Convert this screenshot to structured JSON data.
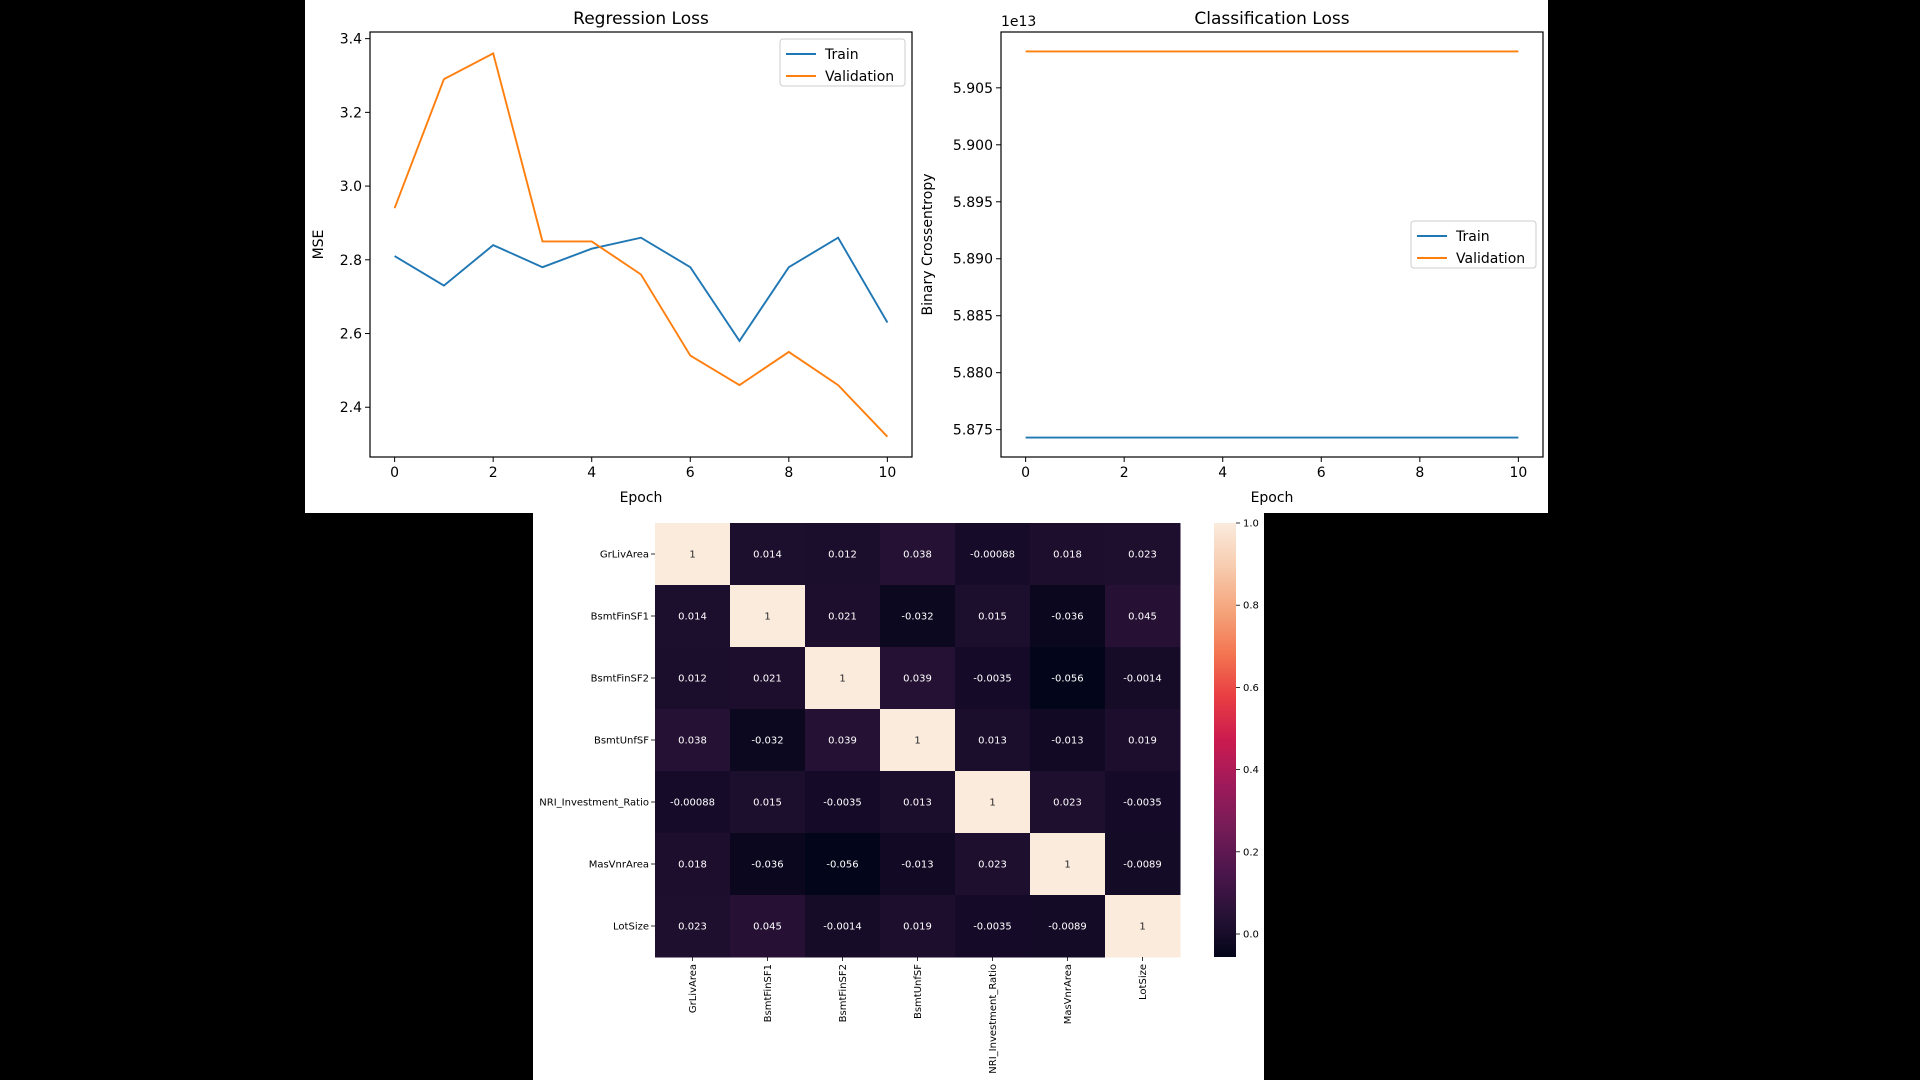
{
  "chart_data": [
    {
      "type": "line",
      "title": "Regression Loss",
      "xlabel": "Epoch",
      "ylabel": "MSE",
      "x": [
        0,
        1,
        2,
        3,
        4,
        5,
        6,
        7,
        8,
        9,
        10
      ],
      "series": [
        {
          "name": "Train",
          "color": "#1f77b4",
          "values": [
            2.81,
            2.73,
            2.84,
            2.78,
            2.83,
            2.86,
            2.78,
            2.58,
            2.78,
            2.86,
            2.63
          ]
        },
        {
          "name": "Validation",
          "color": "#ff7f0e",
          "values": [
            2.94,
            3.29,
            3.36,
            2.85,
            2.85,
            2.76,
            2.54,
            2.46,
            2.55,
            2.46,
            2.32
          ]
        }
      ],
      "xlim": [
        -0.5,
        10.5
      ],
      "ylim": [
        2.265,
        3.418
      ],
      "xticks": [
        0,
        2,
        4,
        6,
        8,
        10
      ],
      "yticks": [
        2.4,
        2.6,
        2.8,
        3.0,
        3.2,
        3.4
      ],
      "ytick_labels": [
        "2.4",
        "2.6",
        "2.8",
        "3.0",
        "3.2",
        "3.4"
      ],
      "legend": "top-right",
      "grid": false
    },
    {
      "type": "line",
      "title": "Classification Loss",
      "xlabel": "Epoch",
      "ylabel": "Binary Crossentropy",
      "offset_label": "1e13",
      "x": [
        0,
        1,
        2,
        3,
        4,
        5,
        6,
        7,
        8,
        9,
        10
      ],
      "series": [
        {
          "name": "Train",
          "color": "#1f77b4",
          "values": [
            5.8743,
            5.8743,
            5.8743,
            5.8743,
            5.8743,
            5.8743,
            5.8743,
            5.8743,
            5.8743,
            5.8743,
            5.8743
          ]
        },
        {
          "name": "Validation",
          "color": "#ff7f0e",
          "values": [
            5.9082,
            5.9082,
            5.9082,
            5.9082,
            5.9082,
            5.9082,
            5.9082,
            5.9082,
            5.9082,
            5.9082,
            5.9082
          ]
        }
      ],
      "xlim": [
        -0.5,
        10.5
      ],
      "ylim": [
        5.8726,
        5.9099
      ],
      "xticks": [
        0,
        2,
        4,
        6,
        8,
        10
      ],
      "yticks": [
        5.875,
        5.88,
        5.885,
        5.89,
        5.895,
        5.9,
        5.905
      ],
      "ytick_labels": [
        "5.875",
        "5.880",
        "5.885",
        "5.890",
        "5.895",
        "5.900",
        "5.905"
      ],
      "legend": "center-right",
      "grid": false
    },
    {
      "type": "heatmap",
      "rows": [
        "GrLivArea",
        "BsmtFinSF1",
        "BsmtFinSF2",
        "BsmtUnfSF",
        "NRI_Investment_Ratio",
        "MasVnrArea",
        "LotSize"
      ],
      "columns": [
        "GrLivArea",
        "BsmtFinSF1",
        "BsmtFinSF2",
        "BsmtUnfSF",
        "NRI_Investment_Ratio",
        "MasVnrArea",
        "LotSize"
      ],
      "values": [
        [
          1,
          0.014,
          0.012,
          0.038,
          -0.00088,
          0.018,
          0.023
        ],
        [
          0.014,
          1,
          0.021,
          -0.032,
          0.015,
          -0.036,
          0.045
        ],
        [
          0.012,
          0.021,
          1,
          0.039,
          -0.0035,
          -0.056,
          -0.0014
        ],
        [
          0.038,
          -0.032,
          0.039,
          1,
          0.013,
          -0.013,
          0.019
        ],
        [
          -0.00088,
          0.015,
          -0.0035,
          0.013,
          1,
          0.023,
          -0.0035
        ],
        [
          0.018,
          -0.036,
          -0.056,
          -0.013,
          0.023,
          1,
          -0.0089
        ],
        [
          0.023,
          0.045,
          -0.0014,
          0.019,
          -0.0035,
          -0.0089,
          1
        ]
      ],
      "labels": [
        [
          "1",
          "0.014",
          "0.012",
          "0.038",
          "-0.00088",
          "0.018",
          "0.023"
        ],
        [
          "0.014",
          "1",
          "0.021",
          "-0.032",
          "0.015",
          "-0.036",
          "0.045"
        ],
        [
          "0.012",
          "0.021",
          "1",
          "0.039",
          "-0.0035",
          "-0.056",
          "-0.0014"
        ],
        [
          "0.038",
          "-0.032",
          "0.039",
          "1",
          "0.013",
          "-0.013",
          "0.019"
        ],
        [
          "-0.00088",
          "0.015",
          "-0.0035",
          "0.013",
          "1",
          "0.023",
          "-0.0035"
        ],
        [
          "0.018",
          "-0.036",
          "-0.056",
          "-0.013",
          "0.023",
          "1",
          "-0.0089"
        ],
        [
          "0.023",
          "0.045",
          "-0.0014",
          "0.019",
          "-0.0035",
          "-0.0089",
          "1"
        ]
      ],
      "vmin": -0.056,
      "vmax": 1,
      "colormap": "rocket",
      "colorbar_ticks": [
        0.0,
        0.2,
        0.4,
        0.6,
        0.8,
        1.0
      ],
      "colorbar_tick_labels": [
        "0.0",
        "0.2",
        "0.4",
        "0.6",
        "0.8",
        "1.0"
      ]
    }
  ]
}
